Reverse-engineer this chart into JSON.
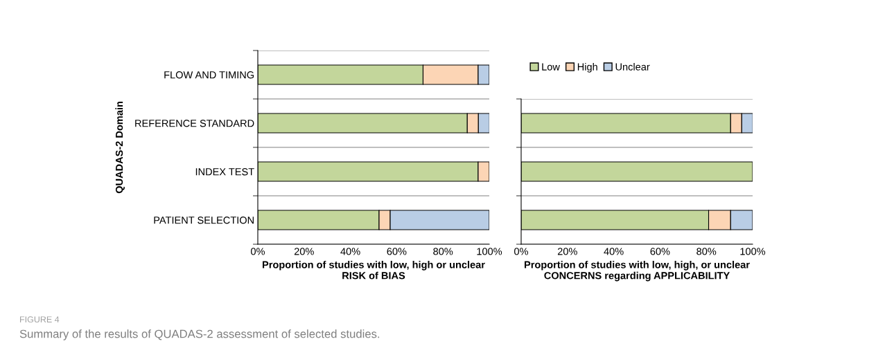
{
  "chart_data": [
    {
      "type": "bar",
      "orientation": "horizontal",
      "stacked": true,
      "categories": [
        "FLOW AND TIMING",
        "REFERENCE STANDARD",
        "INDEX TEST",
        "PATIENT SELECTION"
      ],
      "series": [
        {
          "color": "#c3d69b",
          "values": [
            71.4,
            90.5,
            95.2,
            52.4
          ]
        },
        {
          "color": "#fcd5b5",
          "values": [
            23.8,
            4.8,
            4.8,
            4.8
          ]
        },
        {
          "color": "#b9cde5",
          "values": [
            4.8,
            4.8,
            null,
            42.8
          ]
        }
      ],
      "xlim": [
        0,
        100
      ],
      "xticks": [
        {
          "value": 0,
          "label": "0%"
        },
        {
          "value": 20,
          "label": "20%"
        },
        {
          "value": 40,
          "label": "40%"
        },
        {
          "value": 60,
          "label": "60%"
        },
        {
          "value": 80,
          "label": "80%"
        },
        {
          "value": 100,
          "label": "100%"
        }
      ],
      "xlabel": "Proportion of studies with low, high or unclear\nRISK of BIAS",
      "ylabel": "QUADAS-2 Domain",
      "grid": "y",
      "annotations": [
        "FIGURE 4",
        "Summary of the results of QUADAS-2 assessment of selected studies."
      ]
    },
    {
      "type": "bar",
      "orientation": "horizontal",
      "stacked": true,
      "categories": [
        null,
        null,
        null
      ],
      "series": [
        {
          "name": "Low",
          "color": "#c3d69b",
          "values": [
            90.5,
            100,
            81.0
          ]
        },
        {
          "name": "High",
          "color": "#fcd5b5",
          "values": [
            4.8,
            null,
            9.5
          ]
        },
        {
          "name": "Unclear",
          "color": "#b9cde5",
          "values": [
            4.8,
            null,
            9.5
          ]
        }
      ],
      "xlim": [
        0,
        100
      ],
      "xticks": [
        {
          "value": 0,
          "label": "0%"
        },
        {
          "value": 20,
          "label": "20%"
        },
        {
          "value": 40,
          "label": "40%"
        },
        {
          "value": 60,
          "label": "60%"
        },
        {
          "value": 80,
          "label": "80%"
        },
        {
          "value": 100,
          "label": "100%"
        }
      ],
      "xlabel": "Proportion of studies with low, high, or unclear\nCONCERNS regarding APPLICABILITY",
      "tick_labels": "x",
      "grid": "y",
      "legend": "top"
    }
  ]
}
